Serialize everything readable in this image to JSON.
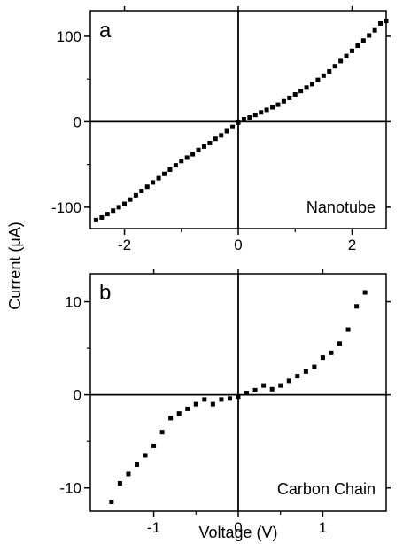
{
  "chart_data": [
    {
      "type": "scatter",
      "panel_label": "a",
      "annotation": "Nanotube",
      "xlabel": "",
      "ylabel": "",
      "xlim": [
        -2.6,
        2.6
      ],
      "ylim": [
        -125,
        130
      ],
      "xticks": [
        -2,
        0,
        2
      ],
      "yticks": [
        -100,
        0,
        100
      ],
      "xtick_labels": [
        "-2",
        "0",
        "2"
      ],
      "ytick_labels": [
        "-100",
        "0",
        "100"
      ],
      "grid": false,
      "marker_color": "#000000",
      "series": [
        {
          "points": [
            [
              -2.5,
              -115
            ],
            [
              -2.4,
              -112
            ],
            [
              -2.3,
              -108
            ],
            [
              -2.2,
              -104
            ],
            [
              -2.1,
              -100
            ],
            [
              -2.0,
              -96
            ],
            [
              -1.9,
              -91
            ],
            [
              -1.8,
              -86
            ],
            [
              -1.7,
              -81
            ],
            [
              -1.6,
              -76
            ],
            [
              -1.5,
              -71
            ],
            [
              -1.4,
              -66
            ],
            [
              -1.3,
              -61
            ],
            [
              -1.2,
              -56
            ],
            [
              -1.1,
              -51
            ],
            [
              -1.0,
              -46
            ],
            [
              -0.9,
              -42
            ],
            [
              -0.8,
              -38
            ],
            [
              -0.7,
              -33
            ],
            [
              -0.6,
              -29
            ],
            [
              -0.5,
              -25
            ],
            [
              -0.4,
              -20
            ],
            [
              -0.3,
              -16
            ],
            [
              -0.2,
              -11
            ],
            [
              -0.1,
              -6
            ],
            [
              0.0,
              -1
            ],
            [
              0.1,
              3
            ],
            [
              0.2,
              5
            ],
            [
              0.3,
              8
            ],
            [
              0.4,
              11
            ],
            [
              0.5,
              14
            ],
            [
              0.6,
              17
            ],
            [
              0.7,
              20
            ],
            [
              0.8,
              24
            ],
            [
              0.9,
              28
            ],
            [
              1.0,
              32
            ],
            [
              1.1,
              36
            ],
            [
              1.2,
              40
            ],
            [
              1.3,
              44
            ],
            [
              1.4,
              49
            ],
            [
              1.5,
              54
            ],
            [
              1.6,
              59
            ],
            [
              1.7,
              65
            ],
            [
              1.8,
              71
            ],
            [
              1.9,
              77
            ],
            [
              2.0,
              83
            ],
            [
              2.1,
              89
            ],
            [
              2.2,
              95
            ],
            [
              2.3,
              101
            ],
            [
              2.4,
              107
            ],
            [
              2.5,
              115
            ],
            [
              2.6,
              118
            ]
          ]
        }
      ]
    },
    {
      "type": "scatter",
      "panel_label": "b",
      "annotation": "Carbon Chain",
      "xlabel": "Voltage (V)",
      "ylabel": "",
      "xlim": [
        -1.75,
        1.75
      ],
      "ylim": [
        -12.5,
        13
      ],
      "xticks": [
        -1,
        0,
        1
      ],
      "yticks": [
        -10,
        0,
        10
      ],
      "xtick_labels": [
        "-1",
        "0",
        "1"
      ],
      "ytick_labels": [
        "-10",
        "0",
        "10"
      ],
      "grid": false,
      "marker_color": "#000000",
      "series": [
        {
          "points": [
            [
              -1.5,
              -11.5
            ],
            [
              -1.4,
              -9.5
            ],
            [
              -1.3,
              -8.5
            ],
            [
              -1.2,
              -7.5
            ],
            [
              -1.1,
              -6.5
            ],
            [
              -1.0,
              -5.5
            ],
            [
              -0.9,
              -4.0
            ],
            [
              -0.8,
              -2.5
            ],
            [
              -0.7,
              -2.0
            ],
            [
              -0.6,
              -1.5
            ],
            [
              -0.5,
              -1.0
            ],
            [
              -0.4,
              -0.5
            ],
            [
              -0.3,
              -1.0
            ],
            [
              -0.2,
              -0.5
            ],
            [
              -0.1,
              -0.4
            ],
            [
              0.0,
              -0.2
            ],
            [
              0.1,
              0.2
            ],
            [
              0.2,
              0.5
            ],
            [
              0.3,
              1.0
            ],
            [
              0.4,
              0.6
            ],
            [
              0.5,
              1.0
            ],
            [
              0.6,
              1.5
            ],
            [
              0.7,
              2.0
            ],
            [
              0.8,
              2.5
            ],
            [
              0.9,
              3.0
            ],
            [
              1.0,
              4.0
            ],
            [
              1.1,
              4.5
            ],
            [
              1.2,
              5.5
            ],
            [
              1.3,
              7.0
            ],
            [
              1.4,
              9.5
            ],
            [
              1.5,
              11.0
            ]
          ]
        }
      ]
    }
  ],
  "shared_ylabel": "Current (μA)"
}
